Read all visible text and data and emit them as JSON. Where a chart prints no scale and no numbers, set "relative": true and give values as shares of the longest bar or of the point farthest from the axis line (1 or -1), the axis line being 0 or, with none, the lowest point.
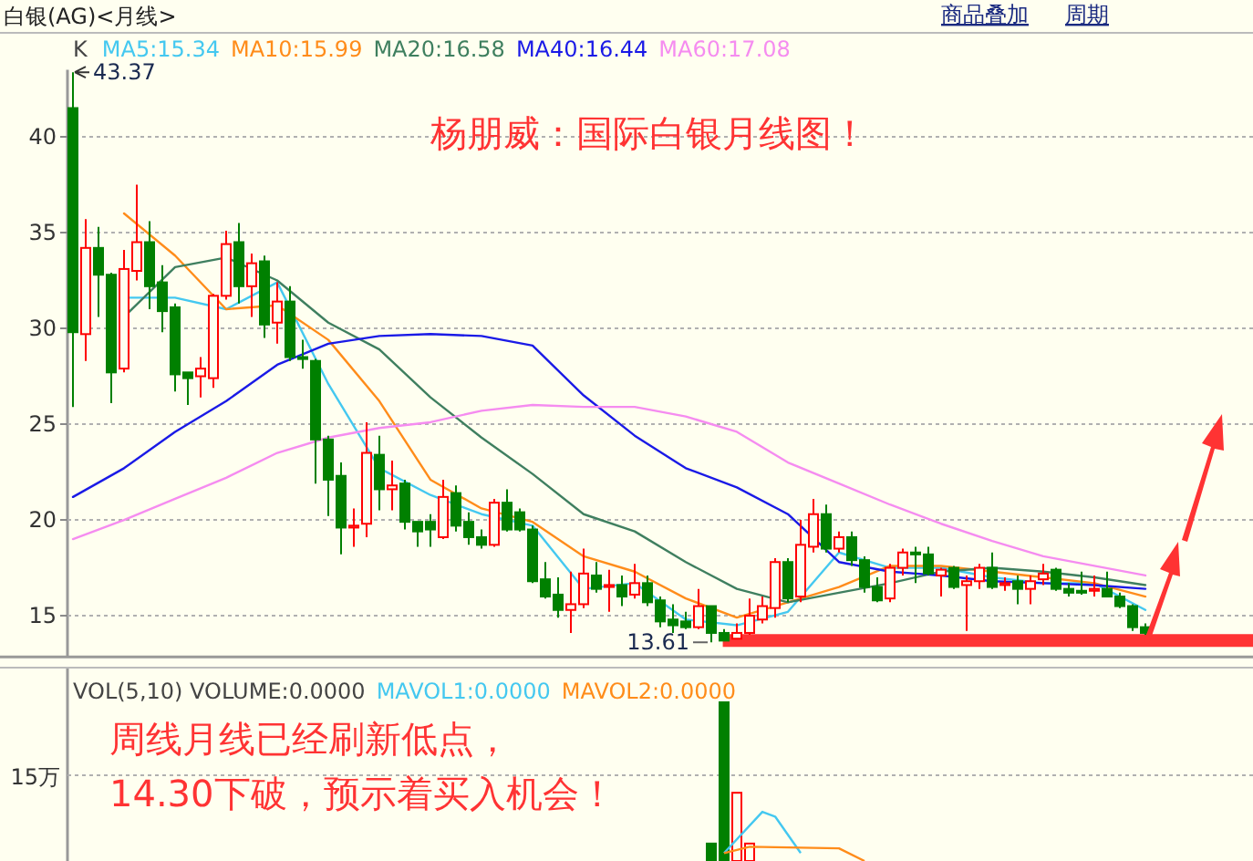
{
  "chart_data": [
    {
      "type": "candlestick",
      "title": "白银(AG)<月线>",
      "categories": [
        null,
        null,
        null,
        null,
        null,
        null,
        null,
        null,
        null,
        null,
        null,
        null,
        null,
        null,
        null,
        null,
        null,
        null,
        null,
        null,
        null,
        null,
        null,
        null,
        null,
        null,
        null,
        null,
        null,
        null,
        null,
        null,
        null,
        null,
        null,
        null,
        null,
        null,
        null,
        null,
        null,
        null,
        null,
        null,
        null,
        null,
        null,
        null,
        null,
        null,
        null,
        null,
        null,
        null,
        null,
        null,
        null,
        null,
        null,
        null,
        null,
        null,
        null,
        null,
        null,
        null,
        null,
        null,
        null,
        null,
        null,
        null,
        null,
        null,
        null,
        null,
        null,
        null,
        null,
        null,
        null,
        null,
        null,
        null,
        null
      ],
      "ohlc": [
        [
          41.5,
          43.37,
          25.9,
          29.8
        ],
        [
          29.7,
          35.7,
          28.3,
          34.2
        ],
        [
          34.2,
          35.3,
          30.6,
          32.8
        ],
        [
          32.8,
          32.9,
          26.1,
          27.7
        ],
        [
          27.9,
          34.1,
          27.7,
          33.1
        ],
        [
          33.0,
          37.5,
          32.5,
          34.5
        ],
        [
          34.5,
          35.6,
          31.0,
          32.2
        ],
        [
          32.4,
          33.3,
          29.8,
          30.9
        ],
        [
          31.1,
          31.3,
          26.7,
          27.6
        ],
        [
          27.7,
          27.7,
          26.0,
          27.4
        ],
        [
          27.5,
          28.5,
          26.4,
          27.9
        ],
        [
          27.4,
          31.8,
          26.9,
          31.7
        ],
        [
          31.7,
          35.1,
          31.5,
          34.4
        ],
        [
          34.5,
          35.5,
          31.3,
          32.2
        ],
        [
          32.2,
          33.9,
          30.6,
          33.4
        ],
        [
          33.5,
          33.8,
          29.5,
          30.2
        ],
        [
          30.3,
          32.4,
          29.2,
          31.4
        ],
        [
          31.4,
          32.2,
          28.3,
          28.5
        ],
        [
          28.5,
          29.4,
          27.9,
          28.4
        ],
        [
          28.3,
          28.4,
          21.9,
          24.2
        ],
        [
          24.2,
          24.4,
          20.2,
          22.1
        ],
        [
          22.3,
          23.0,
          18.2,
          19.6
        ],
        [
          19.6,
          20.6,
          18.6,
          19.7
        ],
        [
          19.8,
          25.1,
          19.1,
          23.5
        ],
        [
          23.4,
          24.4,
          20.5,
          21.6
        ],
        [
          21.6,
          23.1,
          20.5,
          21.8
        ],
        [
          21.9,
          22.1,
          19.5,
          19.9
        ],
        [
          19.9,
          19.9,
          18.6,
          19.4
        ],
        [
          19.9,
          20.3,
          18.6,
          19.5
        ],
        [
          19.1,
          22.1,
          19.0,
          21.2
        ],
        [
          21.4,
          21.8,
          19.4,
          19.7
        ],
        [
          19.9,
          20.4,
          18.7,
          19.1
        ],
        [
          19.1,
          19.5,
          18.5,
          18.7
        ],
        [
          18.7,
          21.1,
          18.6,
          20.9
        ],
        [
          20.9,
          21.6,
          19.4,
          19.5
        ],
        [
          20.4,
          20.6,
          19.4,
          19.5
        ],
        [
          19.5,
          19.7,
          16.7,
          16.8
        ],
        [
          16.9,
          17.8,
          15.9,
          16.0
        ],
        [
          16.1,
          17.0,
          14.9,
          15.3
        ],
        [
          15.3,
          17.3,
          14.1,
          15.6
        ],
        [
          15.6,
          18.5,
          15.4,
          17.2
        ],
        [
          17.1,
          17.8,
          16.2,
          16.4
        ],
        [
          16.5,
          17.4,
          15.2,
          16.6
        ],
        [
          16.6,
          17.1,
          15.5,
          16.0
        ],
        [
          16.1,
          17.7,
          15.9,
          16.7
        ],
        [
          16.7,
          17.1,
          15.5,
          15.7
        ],
        [
          15.8,
          16.0,
          14.4,
          14.7
        ],
        [
          14.8,
          15.6,
          14.1,
          14.5
        ],
        [
          14.7,
          15.2,
          14.3,
          14.4
        ],
        [
          14.4,
          16.4,
          14.3,
          15.5
        ],
        [
          15.5,
          15.5,
          13.61,
          14.1
        ],
        [
          14.1,
          14.3,
          13.7,
          13.7
        ],
        [
          13.8,
          14.6,
          13.8,
          14.1
        ],
        [
          14.1,
          15.9,
          14.0,
          15.0
        ],
        [
          14.8,
          16.0,
          14.6,
          15.5
        ],
        [
          15.4,
          18.0,
          14.9,
          17.8
        ],
        [
          17.8,
          18.0,
          15.7,
          15.9
        ],
        [
          16.0,
          20.0,
          15.7,
          18.7
        ],
        [
          18.6,
          21.1,
          18.3,
          20.3
        ],
        [
          20.3,
          20.8,
          18.3,
          18.5
        ],
        [
          18.5,
          19.4,
          18.3,
          19.1
        ],
        [
          19.1,
          19.4,
          17.6,
          17.9
        ],
        [
          17.9,
          18.1,
          16.2,
          16.5
        ],
        [
          16.5,
          17.0,
          15.7,
          15.8
        ],
        [
          15.9,
          17.7,
          15.7,
          17.5
        ],
        [
          17.5,
          18.5,
          17.1,
          18.3
        ],
        [
          18.3,
          18.6,
          16.7,
          18.2
        ],
        [
          18.2,
          18.6,
          17.1,
          17.2
        ],
        [
          17.1,
          17.5,
          16.0,
          17.4
        ],
        [
          17.5,
          17.6,
          16.4,
          16.5
        ],
        [
          16.6,
          17.1,
          14.2,
          16.8
        ],
        [
          16.8,
          17.7,
          16.4,
          17.5
        ],
        [
          17.5,
          18.3,
          16.4,
          16.5
        ],
        [
          16.6,
          17.0,
          16.3,
          16.7
        ],
        [
          16.8,
          17.1,
          15.6,
          16.4
        ],
        [
          16.4,
          17.1,
          15.6,
          16.8
        ],
        [
          16.9,
          17.7,
          16.6,
          17.2
        ],
        [
          17.4,
          17.5,
          16.3,
          16.4
        ],
        [
          16.4,
          16.7,
          16.0,
          16.2
        ],
        [
          16.3,
          17.3,
          16.1,
          16.2
        ],
        [
          16.3,
          17.1,
          16.0,
          16.4
        ],
        [
          16.4,
          17.3,
          16.0,
          16.0
        ],
        [
          16.0,
          16.2,
          15.4,
          15.5
        ],
        [
          15.5,
          15.6,
          14.2,
          14.4
        ],
        [
          14.4,
          14.6,
          14.0,
          14.1
        ]
      ],
      "series": [
        {
          "name": "MA5:15.34",
          "type": "line",
          "color": "#44c8f0",
          "values": [
            null,
            null,
            null,
            null,
            31.6,
            null,
            null,
            null,
            31.6,
            null,
            null,
            null,
            31.0,
            null,
            null,
            null,
            32.4,
            null,
            null,
            null,
            27.1,
            null,
            null,
            null,
            22.7,
            null,
            null,
            null,
            21.3,
            null,
            null,
            null,
            20.3,
            null,
            null,
            null,
            19.7,
            null,
            null,
            null,
            16.4,
            null,
            null,
            null,
            16.7,
            null,
            null,
            null,
            14.8,
            null,
            null,
            null,
            14.5,
            null,
            null,
            null,
            15.2,
            null,
            null,
            null,
            18.3,
            null,
            null,
            null,
            17.5,
            null,
            null,
            null,
            17.5,
            null,
            null,
            null,
            17.0,
            null,
            null,
            null,
            16.7,
            null,
            null,
            null,
            16.7,
            null,
            null,
            null,
            15.3
          ]
        },
        {
          "name": "MA10:15.99",
          "type": "line",
          "color": "#ff8c1a",
          "values": [
            null,
            null,
            null,
            null,
            36.0,
            null,
            null,
            null,
            33.8,
            null,
            null,
            null,
            31.0,
            null,
            null,
            null,
            31.2,
            null,
            null,
            null,
            29.4,
            null,
            null,
            null,
            26.2,
            null,
            null,
            null,
            22.1,
            null,
            null,
            null,
            20.6,
            null,
            null,
            null,
            19.9,
            null,
            null,
            null,
            18.1,
            null,
            null,
            null,
            17.3,
            null,
            null,
            null,
            15.9,
            null,
            null,
            null,
            14.9,
            null,
            null,
            null,
            15.7,
            null,
            null,
            null,
            16.5,
            null,
            null,
            null,
            17.6,
            null,
            null,
            null,
            17.6,
            null,
            null,
            null,
            17.3,
            null,
            null,
            null,
            17.0,
            null,
            null,
            null,
            16.7,
            null,
            null,
            null,
            16.0
          ]
        },
        {
          "name": "MA20:16.58",
          "type": "line",
          "color": "#3f7f5f",
          "values": [
            null,
            null,
            null,
            null,
            30.6,
            null,
            null,
            null,
            33.2,
            null,
            null,
            null,
            33.7,
            null,
            null,
            null,
            32.5,
            null,
            null,
            null,
            30.3,
            null,
            null,
            null,
            28.9,
            null,
            null,
            null,
            26.4,
            null,
            null,
            null,
            24.3,
            null,
            null,
            null,
            22.4,
            null,
            null,
            null,
            20.3,
            null,
            null,
            null,
            19.4,
            null,
            null,
            null,
            17.8,
            null,
            null,
            null,
            16.4,
            null,
            null,
            null,
            15.7,
            null,
            null,
            null,
            16.2,
            null,
            null,
            null,
            16.7,
            null,
            null,
            null,
            17.3,
            null,
            null,
            null,
            17.5,
            null,
            null,
            null,
            17.3,
            null,
            null,
            null,
            17.0,
            null,
            null,
            null,
            16.6
          ]
        },
        {
          "name": "MA40:16.44",
          "type": "line",
          "color": "#1a1ae6",
          "values": [
            21.2,
            null,
            null,
            null,
            22.7,
            null,
            null,
            null,
            24.6,
            null,
            null,
            null,
            26.2,
            null,
            null,
            null,
            28.1,
            null,
            null,
            null,
            29.2,
            null,
            null,
            null,
            29.6,
            null,
            null,
            null,
            29.7,
            null,
            null,
            null,
            29.6,
            null,
            null,
            null,
            29.1,
            null,
            null,
            null,
            26.5,
            null,
            null,
            null,
            24.4,
            null,
            null,
            null,
            22.7,
            null,
            null,
            null,
            21.7,
            null,
            null,
            null,
            20.3,
            null,
            null,
            null,
            17.8,
            null,
            null,
            null,
            17.3,
            null,
            null,
            null,
            17.1,
            null,
            null,
            null,
            16.8,
            null,
            null,
            null,
            16.7,
            null,
            null,
            null,
            16.6,
            null,
            null,
            null,
            16.4
          ]
        },
        {
          "name": "MA60:17.08",
          "type": "line",
          "color": "#f58cf0",
          "values": [
            19.0,
            null,
            null,
            null,
            20.0,
            null,
            null,
            null,
            21.1,
            null,
            null,
            null,
            22.2,
            null,
            null,
            null,
            23.5,
            null,
            null,
            null,
            24.3,
            null,
            null,
            null,
            24.8,
            null,
            null,
            null,
            25.1,
            null,
            null,
            null,
            25.7,
            null,
            null,
            null,
            26.0,
            null,
            null,
            null,
            25.9,
            null,
            null,
            null,
            25.9,
            null,
            null,
            null,
            25.4,
            null,
            null,
            null,
            24.6,
            null,
            null,
            null,
            23.0,
            null,
            null,
            null,
            21.9,
            null,
            null,
            null,
            20.8,
            null,
            null,
            null,
            19.8,
            null,
            null,
            null,
            18.9,
            null,
            null,
            null,
            18.1,
            null,
            null,
            null,
            17.6,
            null,
            null,
            null,
            17.1
          ]
        }
      ],
      "ylim": [
        12.85,
        43.5
      ],
      "yticks": [
        15,
        20,
        25,
        30,
        35,
        40
      ],
      "grid": "y",
      "legend": "top left",
      "tick_labels": "y",
      "ref_lines": [
        {
          "axis": "y",
          "value": 13.7,
          "color": "#ff3333"
        }
      ],
      "annotations": [
        "K",
        "43.37",
        "13.61",
        "杨朋威：国际白银月线图！",
        "商品叠加",
        "周期"
      ]
    },
    {
      "type": "bar",
      "title": "VOL(5,10) VOLUME:0.0000",
      "relative": true,
      "legend": "top left",
      "ref_lines": [
        {
          "axis": "y",
          "value": 0.54,
          "label": "15万",
          "color": "#b0b0b0",
          "line_style": "dotted"
        }
      ],
      "categories": [
        null,
        null,
        null,
        null,
        null,
        null,
        null,
        null,
        null,
        null,
        null,
        null,
        null,
        null,
        null,
        null,
        null,
        null,
        null,
        null,
        null,
        null,
        null,
        null,
        null,
        null,
        null,
        null,
        null,
        null,
        null,
        null,
        null,
        null,
        null,
        null,
        null,
        null,
        null,
        null,
        null,
        null,
        null,
        null,
        null,
        null,
        null,
        null,
        null,
        null,
        null,
        null,
        null,
        null,
        null,
        null,
        null,
        null,
        null,
        null,
        null,
        null,
        null,
        null,
        null,
        null,
        null,
        null,
        null,
        null,
        null,
        null,
        null,
        null,
        null,
        null,
        null,
        null,
        null,
        null,
        null,
        null,
        null,
        null,
        null
      ],
      "series": [
        {
          "values": [
            null,
            null,
            null,
            null,
            null,
            null,
            null,
            null,
            null,
            null,
            null,
            null,
            null,
            null,
            null,
            null,
            null,
            null,
            null,
            null,
            null,
            null,
            null,
            null,
            null,
            null,
            null,
            null,
            null,
            null,
            null,
            null,
            null,
            null,
            null,
            null,
            null,
            null,
            null,
            null,
            null,
            null,
            null,
            null,
            null,
            null,
            null,
            null,
            null,
            null,
            0.11,
            1,
            0.43,
            0.11,
            null,
            null,
            null,
            null,
            null,
            null,
            null,
            null,
            null,
            null,
            null,
            null,
            null,
            null,
            null,
            null,
            null,
            null,
            null,
            null,
            null,
            null,
            null,
            null,
            null,
            null,
            null,
            null,
            null,
            null,
            null
          ],
          "colors": [
            null,
            null,
            null,
            null,
            null,
            null,
            null,
            null,
            null,
            null,
            null,
            null,
            null,
            null,
            null,
            null,
            null,
            null,
            null,
            null,
            null,
            null,
            null,
            null,
            null,
            null,
            null,
            null,
            null,
            null,
            null,
            null,
            null,
            null,
            null,
            null,
            null,
            null,
            null,
            null,
            null,
            null,
            null,
            null,
            null,
            null,
            null,
            null,
            null,
            null,
            "#008000",
            "#008000",
            "#ff0000",
            "#ff0000",
            null,
            null,
            null,
            null,
            null,
            null,
            null,
            null,
            null,
            null,
            null,
            null,
            null,
            null,
            null,
            null,
            null,
            null,
            null,
            null,
            null,
            null,
            null,
            null,
            null,
            null,
            null,
            null,
            null,
            null,
            null
          ]
        },
        {
          "name": "MAVOL1:0.0000",
          "type": "line",
          "color": "#44c8f0",
          "values": [
            null,
            null,
            null,
            null,
            null,
            null,
            null,
            null,
            null,
            null,
            null,
            null,
            null,
            null,
            null,
            null,
            null,
            null,
            null,
            null,
            null,
            null,
            null,
            null,
            null,
            null,
            null,
            null,
            null,
            null,
            null,
            null,
            null,
            null,
            null,
            null,
            null,
            null,
            null,
            null,
            null,
            null,
            null,
            null,
            null,
            null,
            null,
            null,
            null,
            null,
            null,
            0.05,
            null,
            null,
            0.31,
            0.28,
            null,
            0.05,
            null,
            null,
            null,
            null,
            null,
            null,
            null,
            null,
            null,
            null,
            null,
            null,
            null,
            null,
            null,
            null,
            null,
            null,
            null,
            null,
            null,
            null,
            null,
            null,
            null,
            null,
            null
          ]
        },
        {
          "name": "MAVOL2:0.0000",
          "type": "line",
          "color": "#ff8c1a",
          "values": [
            null,
            null,
            null,
            null,
            null,
            null,
            null,
            null,
            null,
            null,
            null,
            null,
            null,
            null,
            null,
            null,
            null,
            null,
            null,
            null,
            null,
            null,
            null,
            null,
            null,
            null,
            null,
            null,
            null,
            null,
            null,
            null,
            null,
            null,
            null,
            null,
            null,
            null,
            null,
            null,
            null,
            null,
            null,
            null,
            null,
            null,
            null,
            null,
            null,
            null,
            null,
            0.05,
            null,
            0.09,
            null,
            null,
            null,
            null,
            null,
            null,
            0.08,
            null,
            0.0,
            null,
            null,
            null,
            null,
            null,
            null,
            null,
            null,
            null,
            null,
            null,
            null,
            null,
            null,
            null,
            null,
            null,
            null,
            null,
            null,
            null,
            null
          ]
        }
      ],
      "annotations": [
        "周线月线已经刷新低点，",
        "14.30下破，预示着买入机会！"
      ]
    }
  ]
}
